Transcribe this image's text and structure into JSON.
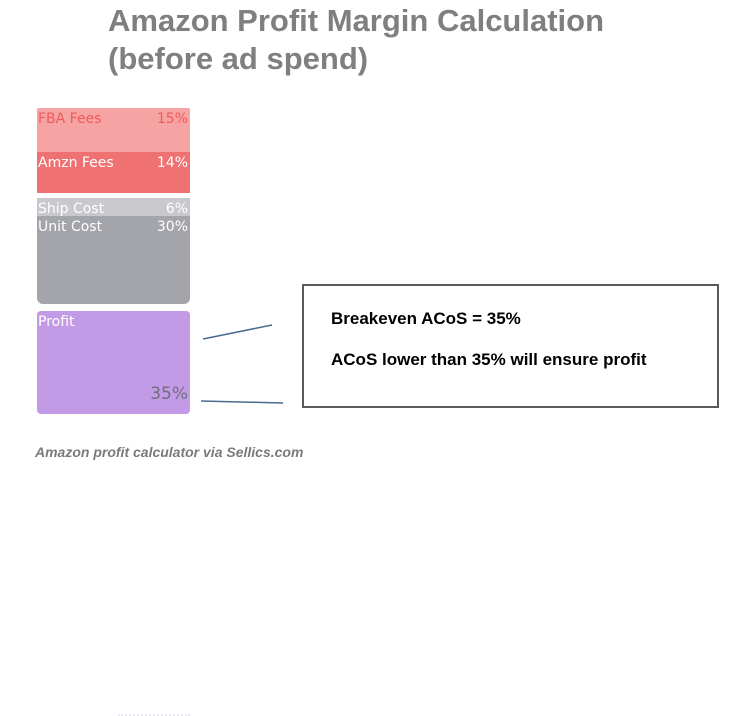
{
  "title_lines": [
    "Amazon Profit Margin Calculation",
    "(before ad spend)"
  ],
  "chart_data": {
    "type": "bar",
    "stacked": true,
    "categories": [
      "FBA Fees",
      "Amzn Fees",
      "Ship Cost",
      "Unit Cost",
      "Profit"
    ],
    "values": [
      15,
      14,
      6,
      30,
      35
    ],
    "labels": [
      "15%",
      "14%",
      "6%",
      "30%",
      "35%"
    ],
    "colors": [
      "#f6a3a3",
      "#f07172",
      "#c9c9cd",
      "#a3a5aa",
      "#c39ae6"
    ],
    "text_colors": [
      "#f05a5a",
      "#ffffff",
      "#ffffff",
      "#ffffff",
      "#ffffff"
    ],
    "pct_colors": [
      "#f05a5a",
      "#ffffff",
      "#ffffff",
      "#ffffff",
      "#6e6e80"
    ]
  },
  "callout": {
    "line1": "Breakeven ACoS = 35%",
    "line2": "ACoS lower than 35% will ensure profit"
  },
  "caption": "Amazon profit calculator via Sellics.com"
}
